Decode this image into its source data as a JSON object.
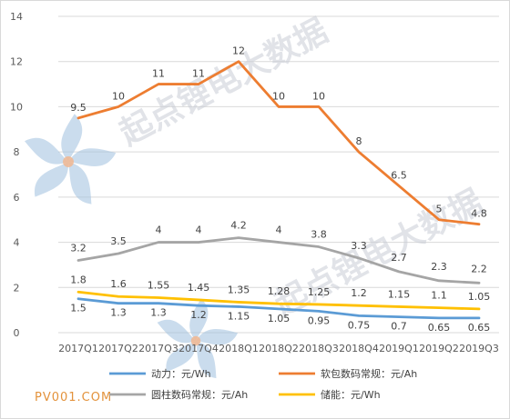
{
  "chart_data": {
    "type": "line",
    "categories": [
      "2017Q1",
      "2017Q2",
      "2017Q3",
      "2017Q4",
      "2018Q1",
      "2018Q2",
      "2018Q3",
      "2018Q4",
      "2019Q1",
      "2019Q2",
      "2019Q3"
    ],
    "ylim": [
      0,
      14
    ],
    "yticks": [
      0,
      2,
      4,
      6,
      8,
      10,
      12,
      14
    ],
    "grid": true,
    "legend_position": "bottom",
    "series": [
      {
        "name": "动力：元/Wh",
        "color": "#5b9bd5",
        "values": [
          1.5,
          1.3,
          1.3,
          1.2,
          1.15,
          1.05,
          0.95,
          0.75,
          0.7,
          0.65,
          0.65
        ],
        "labels": [
          "1.5",
          "1.3",
          "1.3",
          "1.2",
          "1.15",
          "1.05",
          "0.95",
          "0.75",
          "0.7",
          "0.65",
          "0.65"
        ]
      },
      {
        "name": "软包数码常规：元/Ah",
        "color": "#ed7d31",
        "values": [
          9.5,
          10,
          11,
          11,
          12,
          10,
          10,
          8,
          6.5,
          5,
          4.8
        ],
        "labels": [
          "9.5",
          "10",
          "11",
          "11",
          "12",
          "10",
          "10",
          "8",
          "6.5",
          "5",
          "4.8"
        ]
      },
      {
        "name": "圆柱数码常规：元/Ah",
        "color": "#a5a5a5",
        "values": [
          3.2,
          3.5,
          4,
          4,
          4.2,
          4,
          3.8,
          3.3,
          2.7,
          2.3,
          2.2
        ],
        "labels": [
          "3.2",
          "3.5",
          "4",
          "4",
          "4.2",
          "4",
          "3.8",
          "3.3",
          "2.7",
          "2.3",
          "2.2"
        ]
      },
      {
        "name": "储能：元/Wh",
        "color": "#ffc000",
        "values": [
          1.8,
          1.6,
          1.55,
          1.45,
          1.35,
          1.28,
          1.25,
          1.2,
          1.15,
          1.1,
          1.05
        ],
        "labels": [
          "1.8",
          "1.6",
          "1.55",
          "1.45",
          "1.35",
          "1.28",
          "1.25",
          "1.2",
          "1.15",
          "1.1",
          "1.05"
        ]
      }
    ]
  },
  "watermark": {
    "text": "起点锂电大数据",
    "brand": "PV001.COM"
  }
}
